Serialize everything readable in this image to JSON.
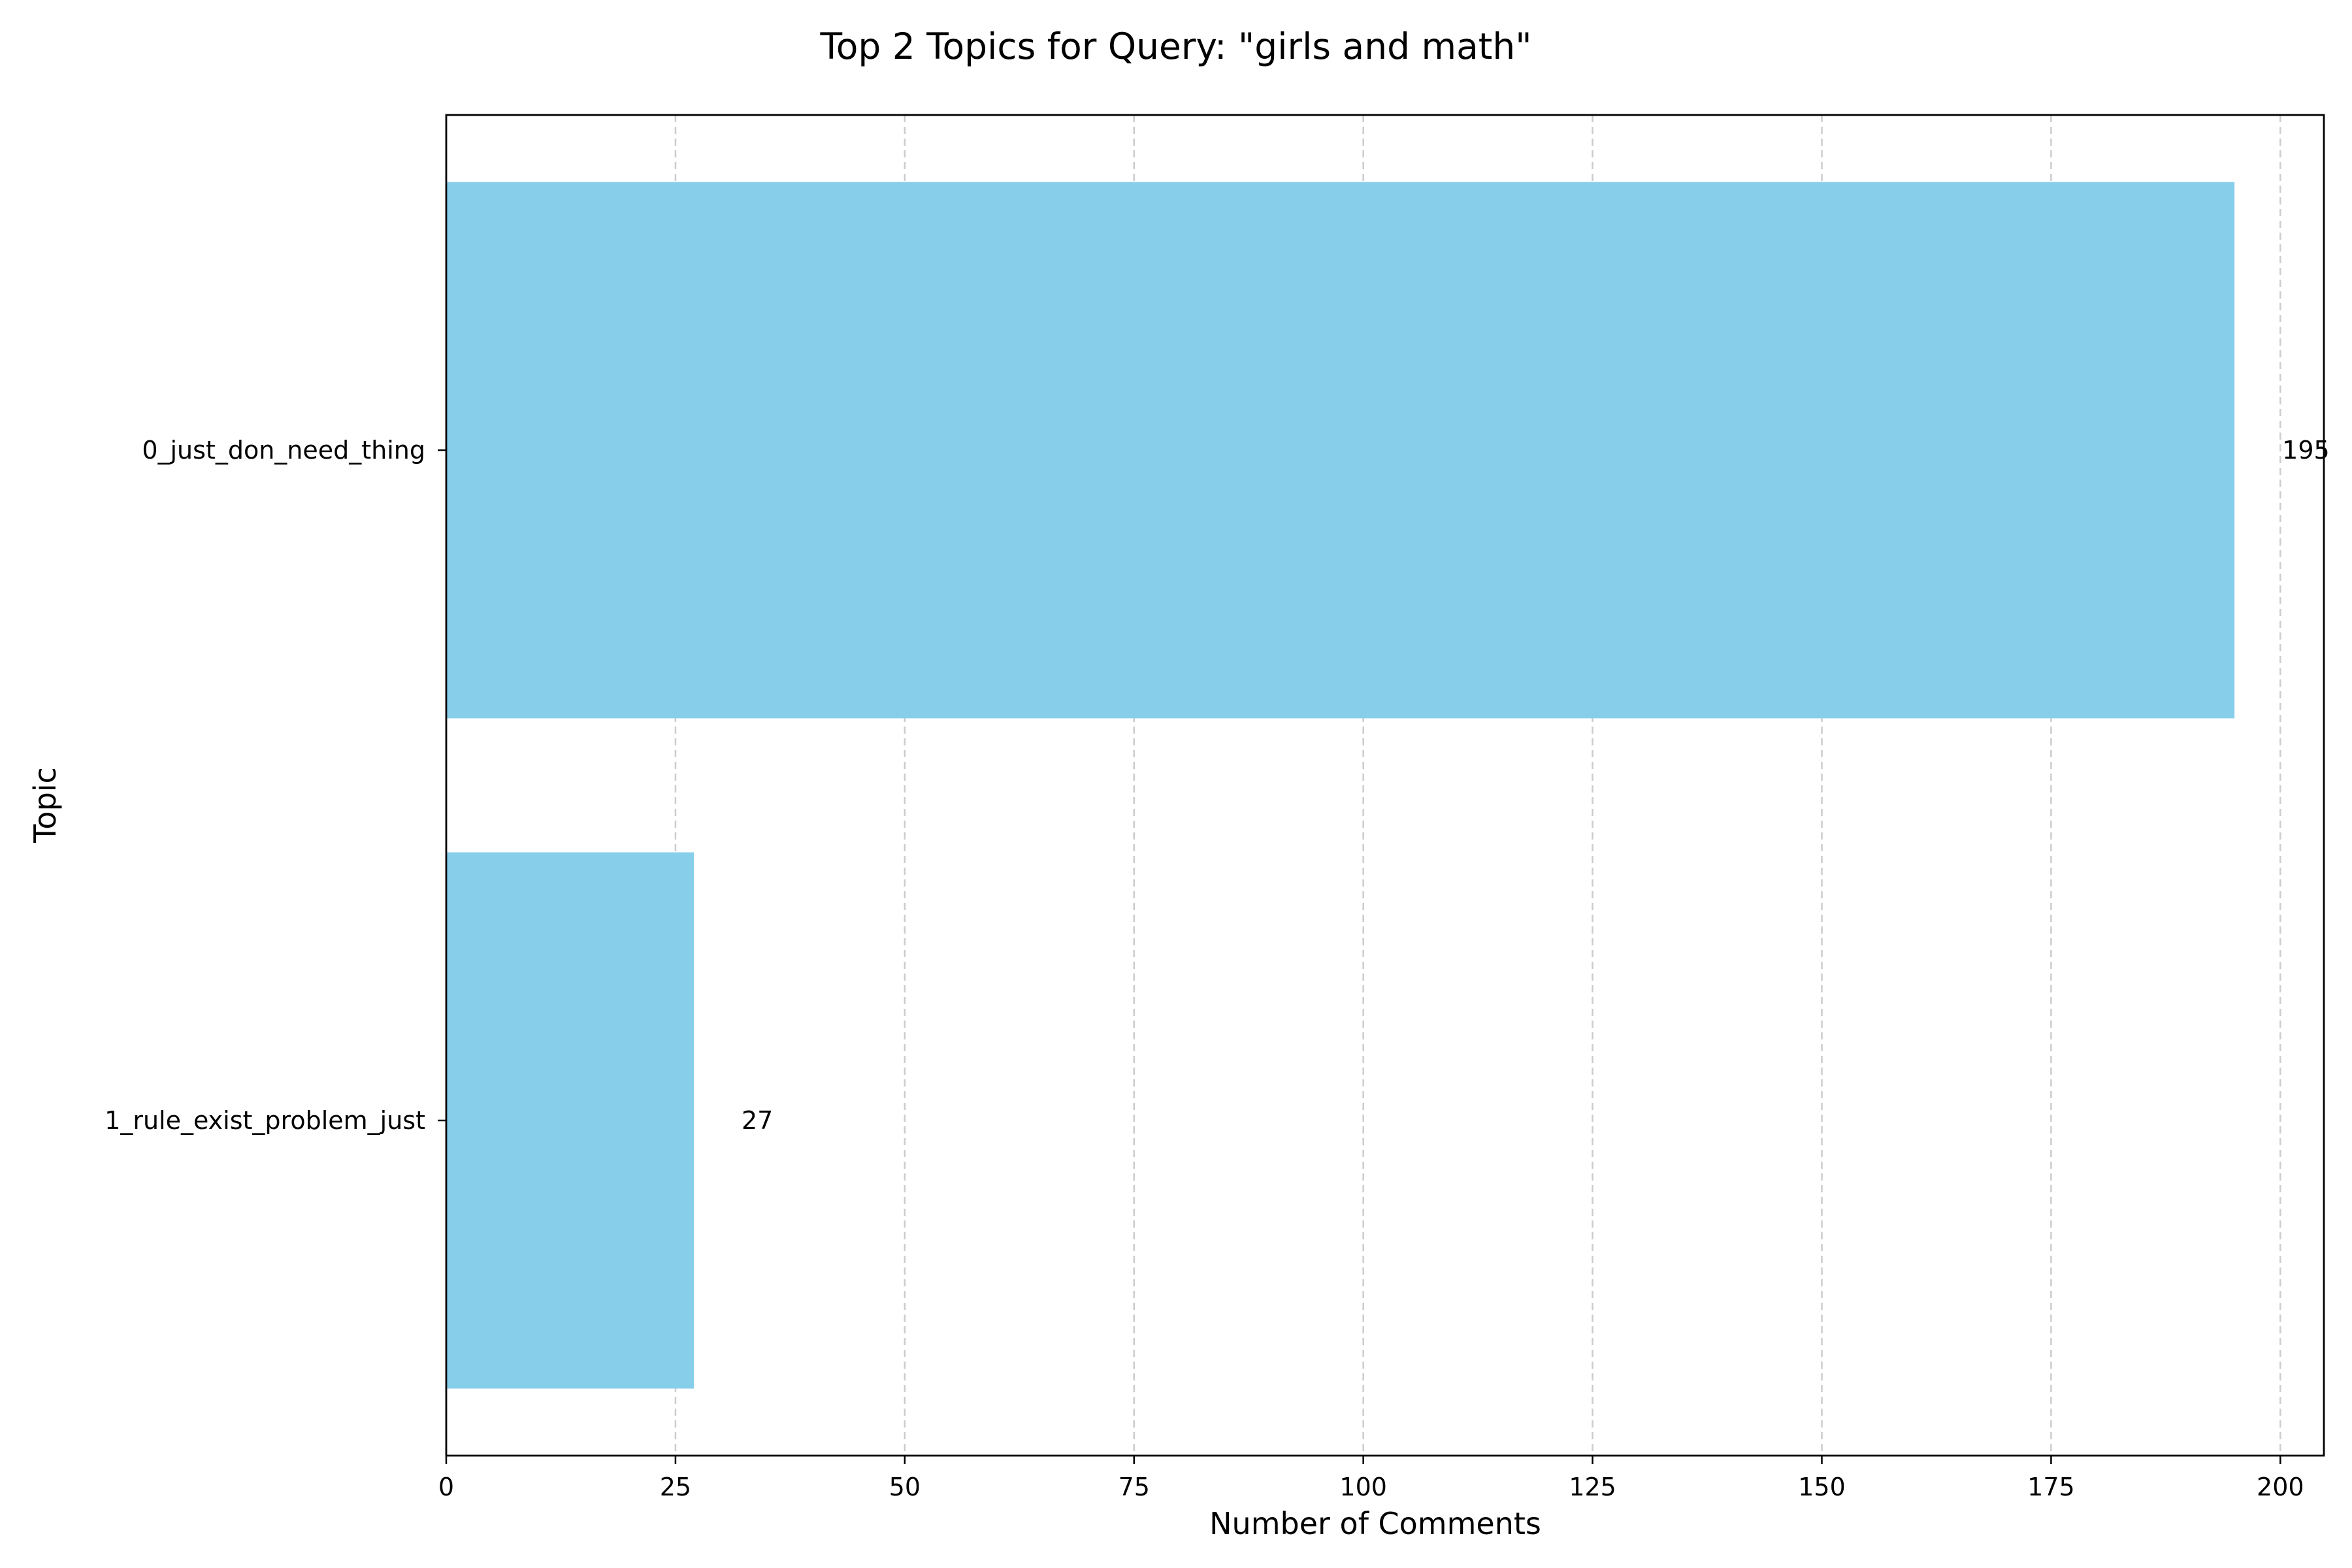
{
  "chart_data": {
    "type": "bar",
    "orientation": "horizontal",
    "title": "Top 2 Topics for Query: \"girls and math\"",
    "xlabel": "Number of Comments",
    "ylabel": "Topic",
    "categories": [
      "0_just_don_need_thing",
      "1_rule_exist_problem_just"
    ],
    "values": [
      195,
      27
    ],
    "data_labels": [
      "195",
      "27"
    ],
    "xlim": [
      0,
      204.75
    ],
    "xticks": [
      0,
      25,
      50,
      75,
      100,
      125,
      150,
      175,
      200
    ],
    "xtick_labels": [
      "0",
      "25",
      "50",
      "75",
      "100",
      "125",
      "150",
      "175",
      "200"
    ],
    "grid": {
      "x": true,
      "y": false,
      "style": "dashed"
    },
    "legend": "none",
    "colors": {
      "bar": "#87CEEB",
      "grid": "#cccccc",
      "axis": "#000000",
      "background": "#ffffff"
    }
  }
}
